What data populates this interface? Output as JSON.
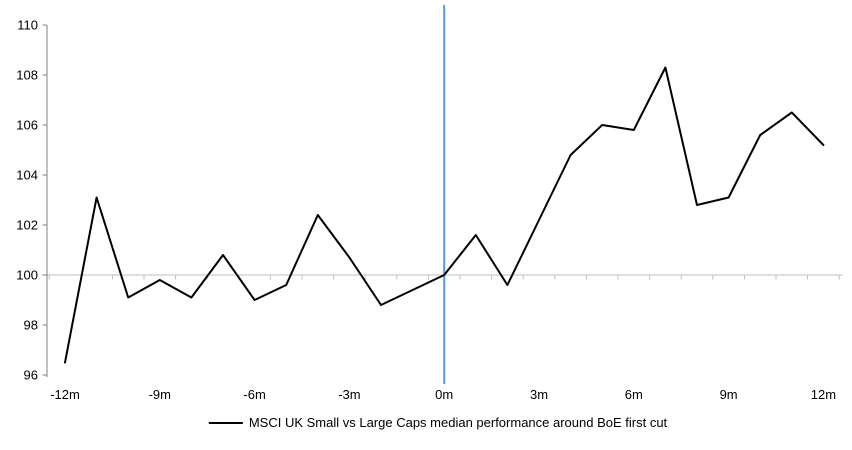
{
  "chart_data": {
    "type": "line",
    "title": "",
    "legend_position": "bottom-center",
    "grid": "baseline-only",
    "baseline_value": 100,
    "ylim": [
      96,
      110
    ],
    "y_axis": {
      "ticks": [
        96,
        98,
        100,
        102,
        104,
        106,
        108,
        110
      ]
    },
    "x_axis": {
      "tick_labels": [
        "-12m",
        "-9m",
        "-6m",
        "-3m",
        "0m",
        "3m",
        "6m",
        "9m",
        "12m"
      ],
      "tick_values": [
        -12,
        -9,
        -6,
        -3,
        0,
        3,
        6,
        9,
        12
      ]
    },
    "x": [
      -12,
      -11,
      -10,
      -9,
      -8,
      -7,
      -6,
      -5,
      -4,
      -3,
      -2,
      -1,
      0,
      1,
      2,
      3,
      4,
      5,
      6,
      7,
      8,
      9,
      10,
      11,
      12
    ],
    "series": [
      {
        "name": "MSCI UK Small vs Large Caps median performance around BoE first cut",
        "color": "#000000",
        "values": [
          96.5,
          103.1,
          99.1,
          99.8,
          99.1,
          100.8,
          99.0,
          99.6,
          102.4,
          100.7,
          98.8,
          99.4,
          100.0,
          101.6,
          99.6,
          102.2,
          104.8,
          106.0,
          105.8,
          108.3,
          102.8,
          103.1,
          105.6,
          106.5,
          105.2
        ]
      }
    ],
    "event_line": {
      "x": 0,
      "color": "#5b9bd5"
    },
    "colors": {
      "gridline": "#bfbfbf",
      "axis": "#808080",
      "text": "#000000",
      "background": "#ffffff"
    }
  }
}
